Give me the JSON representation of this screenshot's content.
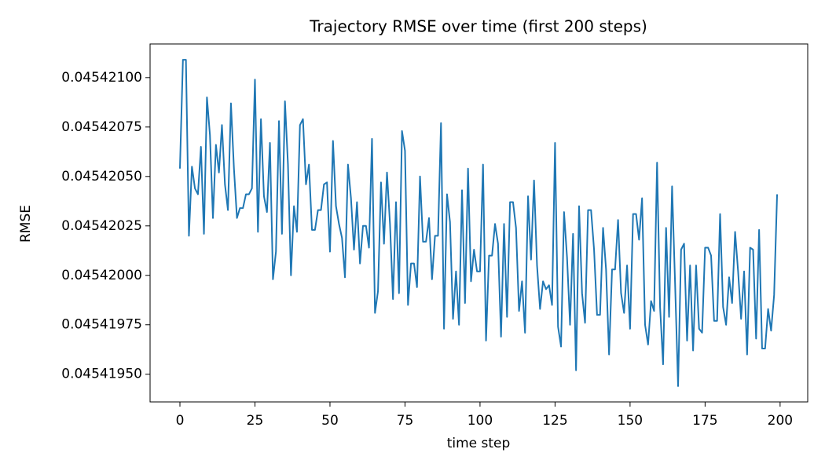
{
  "chart_data": {
    "type": "line",
    "title": "Trajectory RMSE over time (first 200 steps)",
    "x_label": "time step",
    "y_label": "RMSE",
    "x": [
      0,
      1,
      2,
      3,
      4,
      5,
      6,
      7,
      8,
      9,
      10,
      11,
      12,
      13,
      14,
      15,
      16,
      17,
      18,
      19,
      20,
      21,
      22,
      23,
      24,
      25,
      26,
      27,
      28,
      29,
      30,
      31,
      32,
      33,
      34,
      35,
      36,
      37,
      38,
      39,
      40,
      41,
      42,
      43,
      44,
      45,
      46,
      47,
      48,
      49,
      50,
      51,
      52,
      53,
      54,
      55,
      56,
      57,
      58,
      59,
      60,
      61,
      62,
      63,
      64,
      65,
      66,
      67,
      68,
      69,
      70,
      71,
      72,
      73,
      74,
      75,
      76,
      77,
      78,
      79,
      80,
      81,
      82,
      83,
      84,
      85,
      86,
      87,
      88,
      89,
      90,
      91,
      92,
      93,
      94,
      95,
      96,
      97,
      98,
      99,
      100,
      101,
      102,
      103,
      104,
      105,
      106,
      107,
      108,
      109,
      110,
      111,
      112,
      113,
      114,
      115,
      116,
      117,
      118,
      119,
      120,
      121,
      122,
      123,
      124,
      125,
      126,
      127,
      128,
      129,
      130,
      131,
      132,
      133,
      134,
      135,
      136,
      137,
      138,
      139,
      140,
      141,
      142,
      143,
      144,
      145,
      146,
      147,
      148,
      149,
      150,
      151,
      152,
      153,
      154,
      155,
      156,
      157,
      158,
      159,
      160,
      161,
      162,
      163,
      164,
      165,
      166,
      167,
      168,
      169,
      170,
      171,
      172,
      173,
      174,
      175,
      176,
      177,
      178,
      179,
      180,
      181,
      182,
      183,
      184,
      185,
      186,
      187,
      188,
      189,
      190,
      191,
      192,
      193,
      194,
      195,
      196,
      197,
      198,
      199
    ],
    "series": [
      {
        "name": "RMSE",
        "color": "#1f77b4",
        "values": [
          0.04542054,
          0.04542109,
          0.04542109,
          0.0454202,
          0.04542055,
          0.04542044,
          0.04542041,
          0.04542065,
          0.04542021,
          0.0454209,
          0.04542071,
          0.04542029,
          0.04542066,
          0.04542052,
          0.04542076,
          0.04542046,
          0.04542033,
          0.04542087,
          0.04542054,
          0.04542029,
          0.04542034,
          0.04542034,
          0.04542041,
          0.04542041,
          0.04542044,
          0.04542099,
          0.04542022,
          0.04542079,
          0.0454204,
          0.04542032,
          0.04542067,
          0.04541998,
          0.04542012,
          0.04542078,
          0.04542021,
          0.04542088,
          0.04542056,
          0.04542,
          0.04542035,
          0.04542022,
          0.04542076,
          0.04542079,
          0.04542046,
          0.04542056,
          0.04542023,
          0.04542023,
          0.04542033,
          0.04542033,
          0.04542046,
          0.04542047,
          0.04542012,
          0.04542068,
          0.04542035,
          0.04542026,
          0.04542019,
          0.04541999,
          0.04542056,
          0.04542039,
          0.04542013,
          0.04542037,
          0.04542006,
          0.04542025,
          0.04542025,
          0.04542014,
          0.04542069,
          0.04541981,
          0.04541992,
          0.04542047,
          0.04542016,
          0.04542052,
          0.04542026,
          0.04541988,
          0.04542037,
          0.04541991,
          0.04542073,
          0.04542063,
          0.04541985,
          0.04542006,
          0.04542006,
          0.04541994,
          0.0454205,
          0.04542017,
          0.04542017,
          0.04542029,
          0.04541998,
          0.0454202,
          0.0454202,
          0.04542077,
          0.04541973,
          0.04542041,
          0.04542027,
          0.04541978,
          0.04542002,
          0.04541975,
          0.04542043,
          0.04541986,
          0.04542054,
          0.04541997,
          0.04542013,
          0.04542002,
          0.04542002,
          0.04542056,
          0.04541967,
          0.0454201,
          0.0454201,
          0.04542026,
          0.04542016,
          0.04541969,
          0.04542026,
          0.04541979,
          0.04542037,
          0.04542037,
          0.04542024,
          0.04541982,
          0.04541997,
          0.04541971,
          0.0454204,
          0.04542008,
          0.04542048,
          0.04542005,
          0.04541983,
          0.04541997,
          0.04541993,
          0.04541995,
          0.04541985,
          0.04542067,
          0.04541974,
          0.04541964,
          0.04542032,
          0.04542009,
          0.04541975,
          0.04542021,
          0.04541952,
          0.04542035,
          0.04541991,
          0.04541976,
          0.04542033,
          0.04542033,
          0.04542013,
          0.0454198,
          0.0454198,
          0.04542024,
          0.04542003,
          0.0454196,
          0.04542003,
          0.04542003,
          0.04542028,
          0.04541991,
          0.04541981,
          0.04542005,
          0.04541973,
          0.04542031,
          0.04542031,
          0.04542018,
          0.04542039,
          0.04541975,
          0.04541965,
          0.04541987,
          0.04541982,
          0.04542057,
          0.04541984,
          0.04541955,
          0.04542024,
          0.04541979,
          0.04542045,
          0.04541996,
          0.04541944,
          0.04542013,
          0.04542016,
          0.04541967,
          0.04542005,
          0.04541962,
          0.04542005,
          0.04541973,
          0.04541971,
          0.04542014,
          0.04542014,
          0.0454201,
          0.04541977,
          0.04541977,
          0.04542031,
          0.04541984,
          0.04541975,
          0.04541999,
          0.04541986,
          0.04542022,
          0.04542002,
          0.04541978,
          0.04542002,
          0.0454196,
          0.04542014,
          0.04542013,
          0.04541968,
          0.04542023,
          0.04541963,
          0.04541963,
          0.04541983,
          0.04541972,
          0.0454199,
          0.04542041
        ]
      }
    ],
    "xlim": [
      -9.95,
      209.2
    ],
    "xticks": [
      0,
      25,
      50,
      75,
      100,
      125,
      150,
      175,
      200
    ],
    "ylim": [
      0.04541936,
      0.04542117
    ],
    "yticks": [
      {
        "value": 0.0454195,
        "label": "0.04541950"
      },
      {
        "value": 0.04541975,
        "label": "0.04541975"
      },
      {
        "value": 0.04542,
        "label": "0.04542000"
      },
      {
        "value": 0.04542025,
        "label": "0.04542025"
      },
      {
        "value": 0.0454205,
        "label": "0.04542050"
      },
      {
        "value": 0.04542075,
        "label": "0.04542075"
      },
      {
        "value": 0.045421,
        "label": "0.04542100"
      }
    ],
    "grid": false
  }
}
